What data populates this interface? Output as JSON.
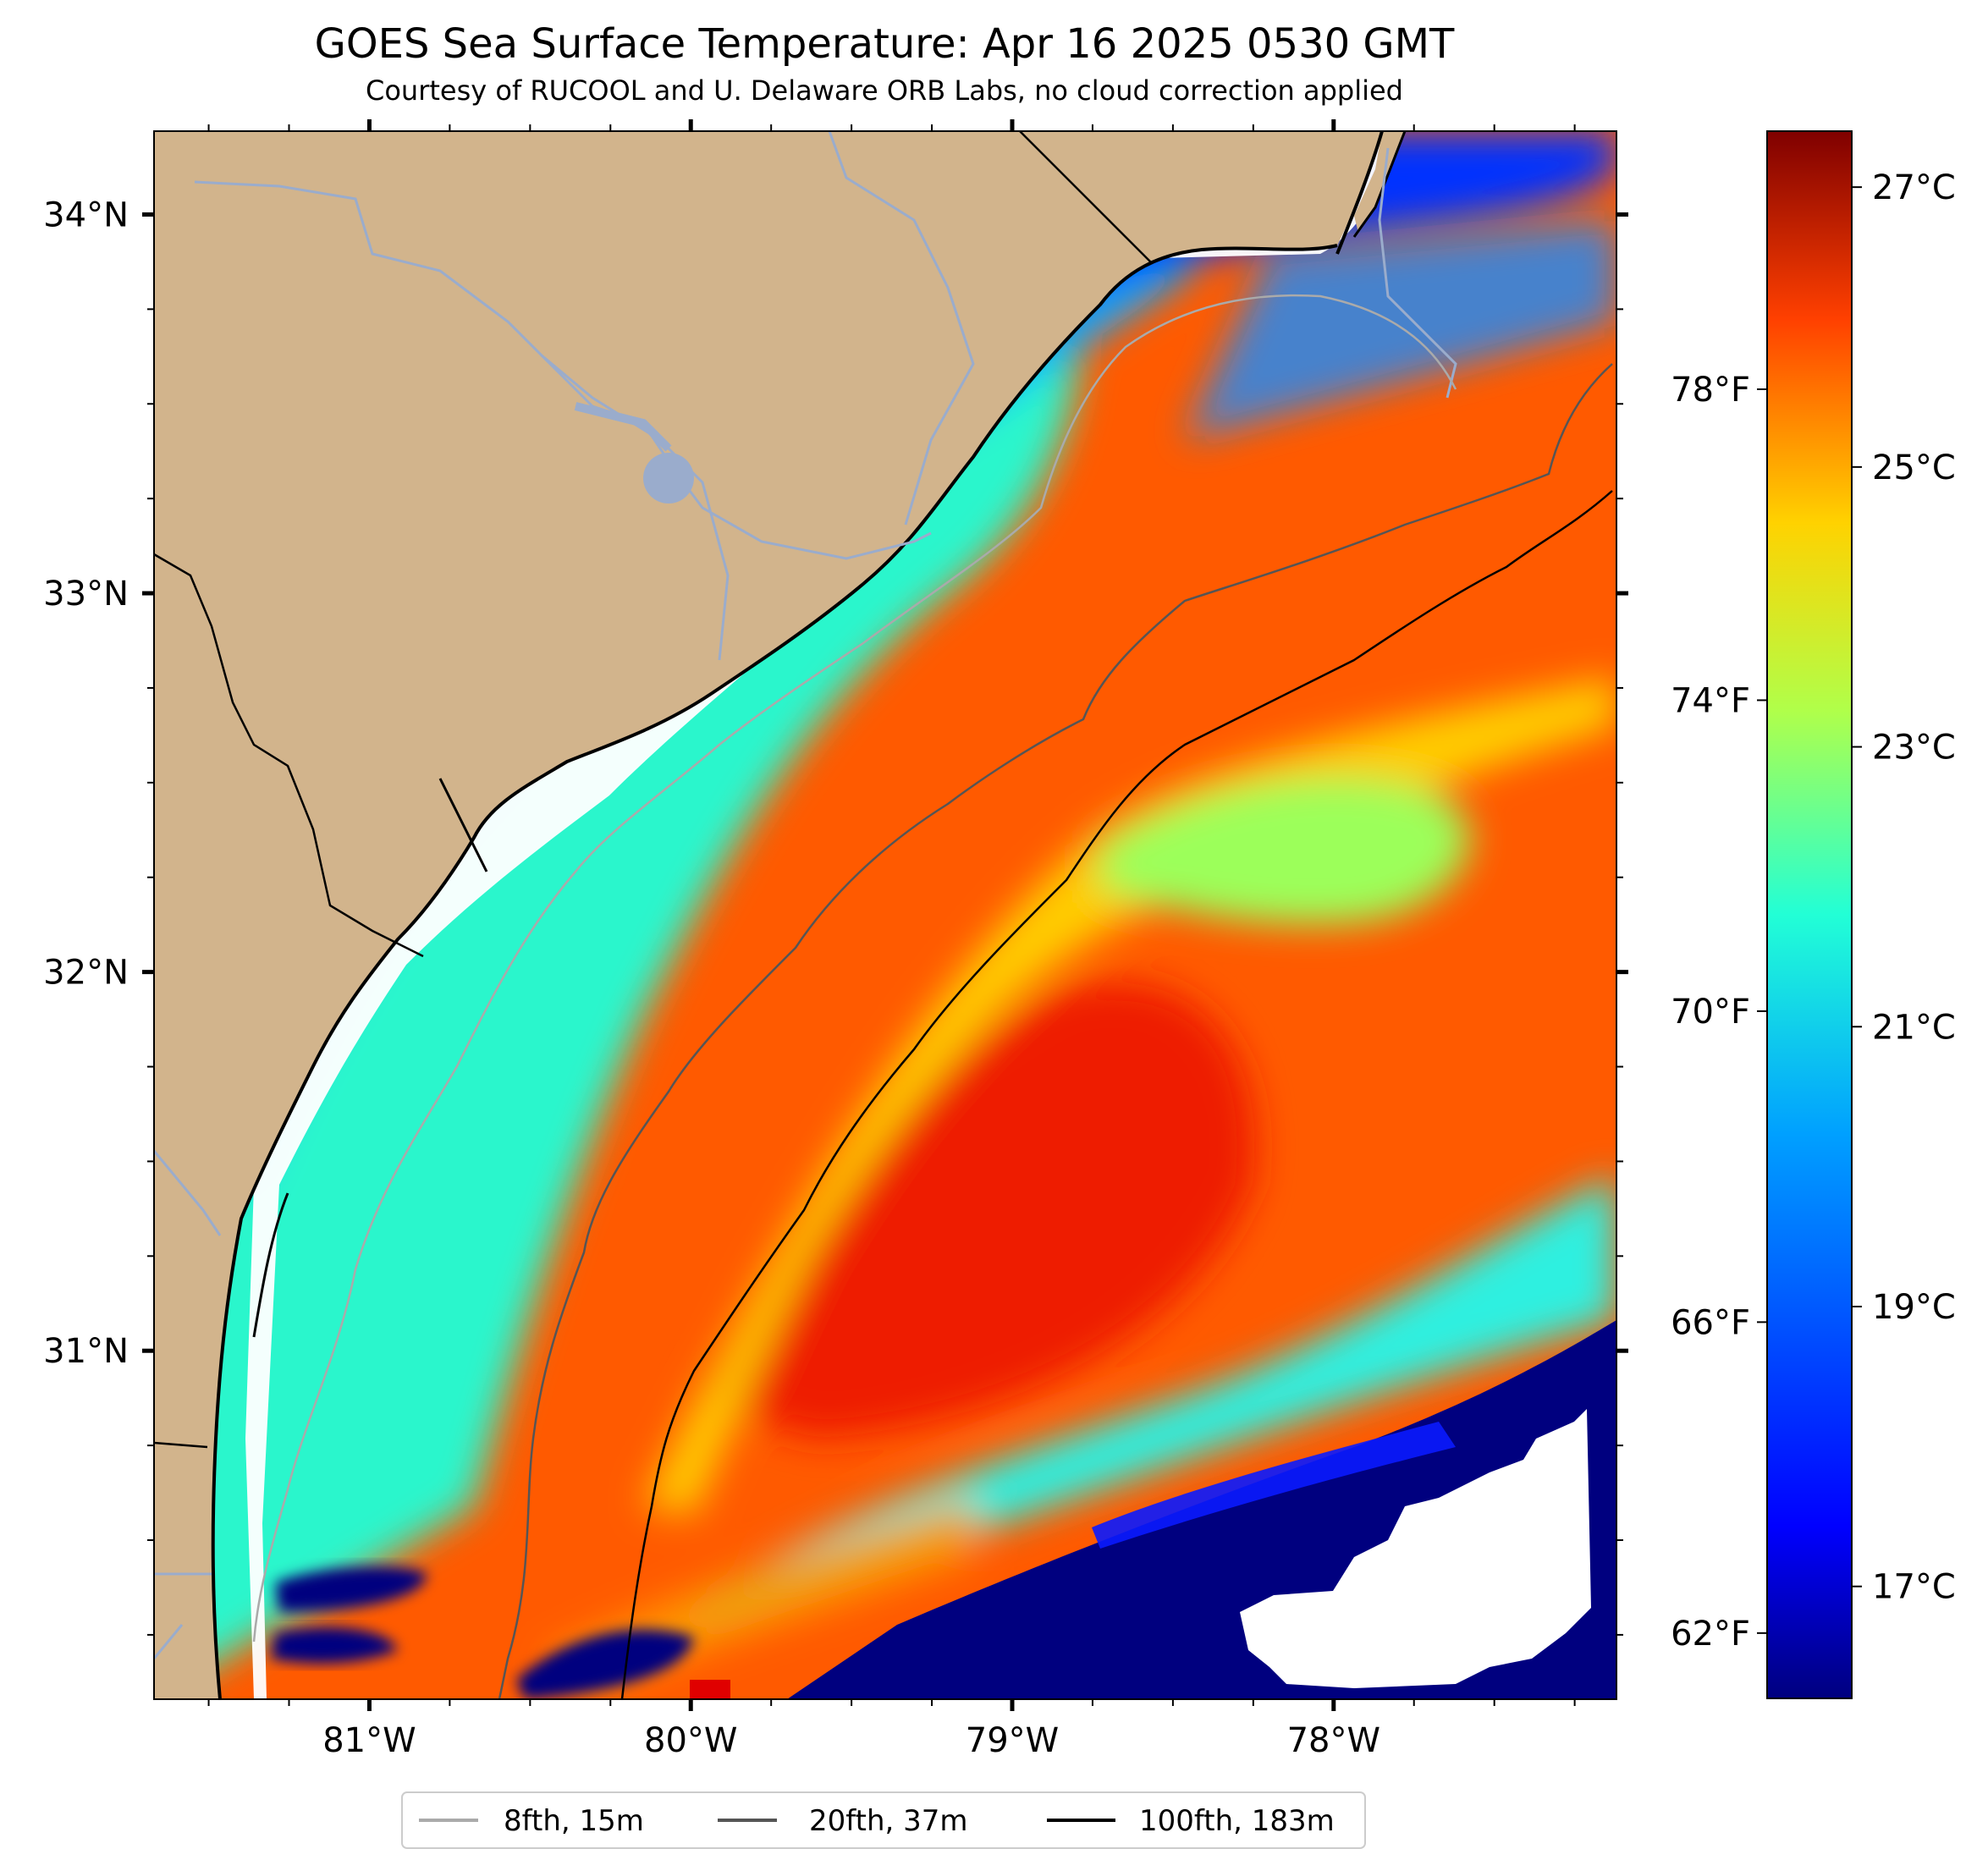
{
  "title": "GOES Sea Surface Temperature: Apr 16 2025 0530 GMT",
  "subtitle": "Courtesy of RUCOOL and U. Delaware ORB Labs, no cloud correction applied",
  "map": {
    "lon_range": [
      -81.67,
      -77.12
    ],
    "lat_range": [
      30.08,
      34.22
    ],
    "lon_ticks": [
      {
        "value": -81,
        "label": "81°W"
      },
      {
        "value": -80,
        "label": "80°W"
      },
      {
        "value": -79,
        "label": "79°W"
      },
      {
        "value": -78,
        "label": "78°W"
      }
    ],
    "lat_ticks": [
      {
        "value": 34,
        "label": "34°N"
      },
      {
        "value": 33,
        "label": "33°N"
      },
      {
        "value": 32,
        "label": "32°N"
      },
      {
        "value": 31,
        "label": "31°N"
      }
    ],
    "land_color": "#d2b48c",
    "no_data_color": "#ffffff",
    "cold_mask_color": "#00007f"
  },
  "colorbar": {
    "colormap": "jet",
    "celsius_range": [
      16.2,
      27.4
    ],
    "celsius_ticks": [
      {
        "value": 27,
        "label": "27°C"
      },
      {
        "value": 25,
        "label": "25°C"
      },
      {
        "value": 23,
        "label": "23°C"
      },
      {
        "value": 21,
        "label": "21°C"
      },
      {
        "value": 19,
        "label": "19°C"
      },
      {
        "value": 17,
        "label": "17°C"
      }
    ],
    "fahrenheit_ticks": [
      {
        "value": 78,
        "label": "78°F"
      },
      {
        "value": 74,
        "label": "74°F"
      },
      {
        "value": 70,
        "label": "70°F"
      },
      {
        "value": 66,
        "label": "66°F"
      },
      {
        "value": 62,
        "label": "62°F"
      }
    ]
  },
  "legend": [
    {
      "label": "8fth, 15m",
      "color": "#aaaaaa"
    },
    {
      "label": "20fth, 37m",
      "color": "#555555"
    },
    {
      "label": "100fth, 183m",
      "color": "#000000"
    }
  ]
}
